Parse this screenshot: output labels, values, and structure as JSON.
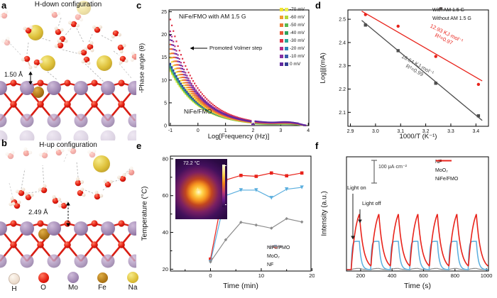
{
  "labels": {
    "a": "a",
    "b": "b",
    "c": "c",
    "d": "d",
    "e": "e",
    "f": "f"
  },
  "panel_a": {
    "title": "H-down configuration",
    "distance_label": "1.50 Å"
  },
  "panel_b": {
    "title": "H-up configuration",
    "distance_label": "2.49 Å"
  },
  "atom_legend": {
    "items": [
      {
        "symbol": "H",
        "color": "#f4ebe2"
      },
      {
        "symbol": "O",
        "color": "#e32119"
      },
      {
        "symbol": "Mo",
        "color": "#a98fba"
      },
      {
        "symbol": "Fe",
        "color": "#b07818"
      },
      {
        "symbol": "Na",
        "color": "#e3cf4e"
      }
    ]
  },
  "chart_data": [
    {
      "panel": "c",
      "type": "scatter",
      "xlabel": "Log[Frequency (Hz)]",
      "ylabel": "-Phase angle (θ)",
      "xlim": [
        -1.05,
        4.02
      ],
      "ylim": [
        0,
        25.4
      ],
      "xticks": [
        -1,
        0,
        1,
        2,
        3,
        4
      ],
      "yticks": [
        0,
        5,
        10,
        15,
        20,
        25
      ],
      "annotations": {
        "condition_label": "NiFe/FMO with AM 1.5 G",
        "volmer_label": "Promoted Volmer step",
        "sample_label": "NiFe/FMO"
      },
      "legend": [
        {
          "label": "-70 mV",
          "with_am_color": "#f2e431",
          "without_am_color": "#eef04e"
        },
        {
          "label": "-60 mV",
          "with_am_color": "#f09e2e",
          "without_am_color": "#b2d838"
        },
        {
          "label": "-50 mV",
          "with_am_color": "#ed7a35",
          "without_am_color": "#5cb84e"
        },
        {
          "label": "-40 mV",
          "with_am_color": "#e85a3a",
          "without_am_color": "#2fa25a"
        },
        {
          "label": "-30 mV",
          "with_am_color": "#e03448",
          "without_am_color": "#28a596"
        },
        {
          "label": "-20 mV",
          "with_am_color": "#b52e8a",
          "without_am_color": "#2f86b8"
        },
        {
          "label": "-10 mV",
          "with_am_color": "#8631a2",
          "without_am_color": "#3b5cac"
        },
        {
          "label": "0 mV",
          "with_am_color": "#5f2a9e",
          "without_am_color": "#323f93"
        }
      ],
      "with_am_peak_phase_deg": [
        14.8,
        15.8,
        16.8,
        17.8,
        23.3,
        20.7,
        18.8,
        19.8
      ],
      "without_am_peak_phase_deg": [
        11.9,
        12.2,
        12.5,
        12.8,
        13.0,
        13.2,
        13.4,
        13.6
      ]
    },
    {
      "panel": "d",
      "type": "scatter",
      "xlabel": "1000/T (K⁻¹)",
      "ylabel": "Log|j|(mA)",
      "xlim": [
        2.89,
        3.45
      ],
      "ylim": [
        2.04,
        2.54
      ],
      "xticks": [
        2.9,
        3.0,
        3.1,
        3.2,
        3.3,
        3.4
      ],
      "yticks": [
        2.1,
        2.2,
        2.3,
        2.4,
        2.5
      ],
      "series": [
        {
          "name": "With AM 1.5 G",
          "color": "#e8231b",
          "marker": "circle",
          "x": [
            2.96,
            3.09,
            3.24,
            3.41
          ],
          "y": [
            2.52,
            2.47,
            2.34,
            2.22
          ],
          "fit": {
            "x": [
              2.945,
              3.425
            ],
            "y": [
              2.535,
              2.235
            ]
          },
          "activation_energy": "12.93 KJ·mol⁻¹",
          "r_squared": "R²=0.97"
        },
        {
          "name": "Without AM 1.5 G",
          "color": "#4d4d4d",
          "marker": "square",
          "x": [
            2.96,
            3.09,
            3.24,
            3.41
          ],
          "y": [
            2.475,
            2.365,
            2.225,
            2.085
          ],
          "fit": {
            "x": [
              2.945,
              3.425
            ],
            "y": [
              2.495,
              2.065
            ]
          },
          "activation_energy": "16.64 KJ·mol⁻¹",
          "r_squared": "R²=0.99"
        }
      ]
    },
    {
      "panel": "e",
      "type": "line",
      "xlabel": "Time (min)",
      "ylabel": "Temperature (°C)",
      "xlim": [
        -7.9,
        19.8
      ],
      "ylim": [
        19,
        81.5
      ],
      "xticks": [
        0,
        10,
        20
      ],
      "yticks": [
        20,
        40,
        60,
        80
      ],
      "x": [
        0,
        3,
        6,
        9,
        12,
        15,
        18
      ],
      "series": [
        {
          "name": "NiFe/FMO",
          "color": "#e8231b",
          "marker": "square",
          "values": [
            25.5,
            68.5,
            71,
            70.5,
            72.3,
            70.8,
            72.3
          ]
        },
        {
          "name": "MoO₂",
          "color": "#5aaede",
          "marker": "triangle-down",
          "values": [
            24,
            60,
            63,
            63,
            58.8,
            63.5,
            64.5
          ]
        },
        {
          "name": "NF",
          "color": "#8c8c8c",
          "marker": "diamond",
          "values": [
            24,
            36,
            45.5,
            44,
            42.3,
            47.5,
            45.7
          ]
        }
      ],
      "inset": {
        "temperature_label": "72.2 °C"
      }
    },
    {
      "panel": "f",
      "type": "line",
      "xlabel": "Time (s)",
      "ylabel": "Intensity (a.u.)",
      "xlim": [
        110,
        1013
      ],
      "xticks": [
        200,
        400,
        600,
        800,
        1000
      ],
      "scalebar_label": "100 μA·cm⁻²",
      "light_on_label": "Light on",
      "light_off_label": "Light off",
      "light_cycle": {
        "start_s": 140,
        "period_s": 124,
        "on_duration_s": 52,
        "cycles": 7
      },
      "series": [
        {
          "name": "NF",
          "color": "#8c8c8c",
          "relative_peak": 0.02
        },
        {
          "name": "MoO₂",
          "color": "#5aaede",
          "relative_peak": 0.42
        },
        {
          "name": "NiFe/FMO",
          "color": "#e8231b",
          "relative_peak": 1.0
        }
      ]
    }
  ]
}
